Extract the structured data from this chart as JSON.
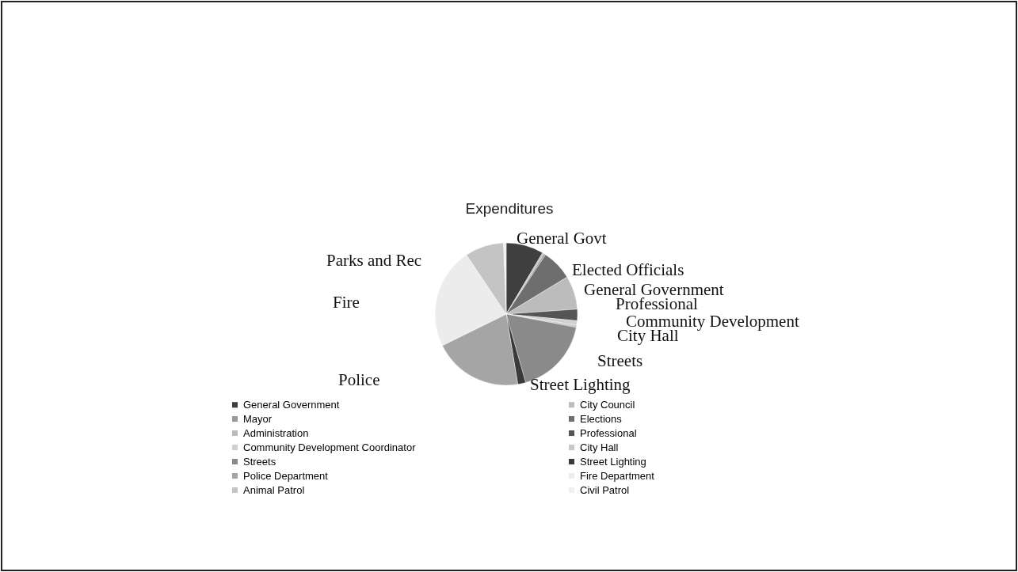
{
  "chart_data": {
    "type": "pie",
    "title": "Expenditures",
    "categories": [
      "General Government",
      "City Council",
      "Mayor",
      "Elections",
      "Administration",
      "Professional",
      "Community Development Coordinator",
      "City Hall",
      "Streets",
      "Street Lighting",
      "Police Department",
      "Fire Department",
      "Animal Patrol",
      "Civil Patrol"
    ],
    "values": [
      8.5,
      0.4,
      0.4,
      7.0,
      7.6,
      2.6,
      1.0,
      0.5,
      17.6,
      1.8,
      20.3,
      22.9,
      8.8,
      0.6
    ],
    "colors": [
      "#3f3f3f",
      "#bdbdbd",
      "#9a9a9a",
      "#6e6e6e",
      "#bcbcbc",
      "#555555",
      "#d0d0d0",
      "#c8c8c8",
      "#8a8a8a",
      "#3a3a3a",
      "#a5a5a5",
      "#ececec",
      "#c4c4c4",
      "#f0f0f0"
    ],
    "annotations": [
      "General Govt",
      "Elected Officials",
      "General Government",
      "Professional",
      "Community Development",
      "City Hall",
      "Streets",
      "Street Lighting",
      "Police",
      "Fire",
      "Parks and Rec"
    ],
    "legend": "bottom"
  }
}
